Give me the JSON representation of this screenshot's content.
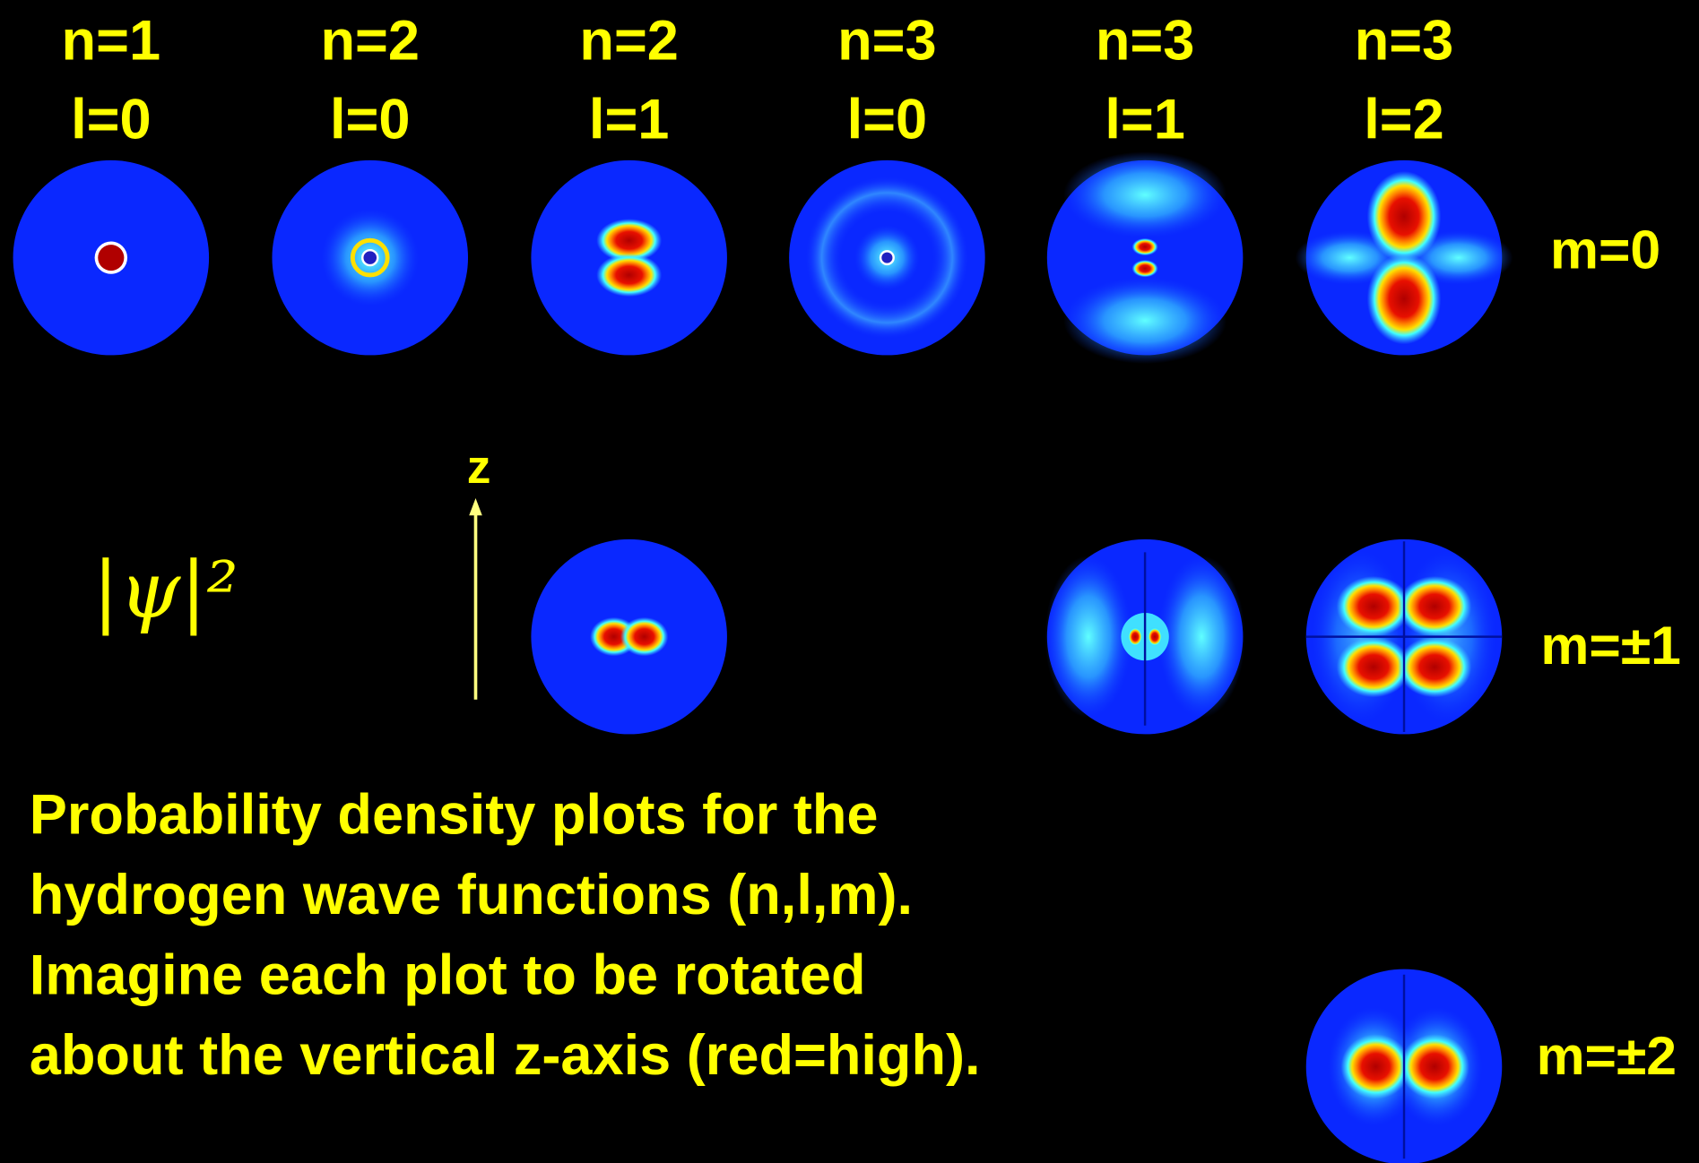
{
  "header": {
    "columns": [
      {
        "n": "n=1",
        "l": "l=0"
      },
      {
        "n": "n=2",
        "l": "l=0"
      },
      {
        "n": "n=2",
        "l": "l=1"
      },
      {
        "n": "n=3",
        "l": "l=0"
      },
      {
        "n": "n=3",
        "l": "l=1"
      },
      {
        "n": "n=3",
        "l": "l=2"
      }
    ]
  },
  "rows": [
    {
      "label": "m=0"
    },
    {
      "label": "m=±1"
    },
    {
      "label": "m=±2"
    }
  ],
  "annotations": {
    "psi": "|ψ|²",
    "axis": "z"
  },
  "caption": {
    "lines": [
      "Probability density plots for the",
      "hydrogen wave functions (n,l,m).",
      "Imagine each plot to be rotated",
      "about the vertical z-axis (red=high)."
    ]
  }
}
